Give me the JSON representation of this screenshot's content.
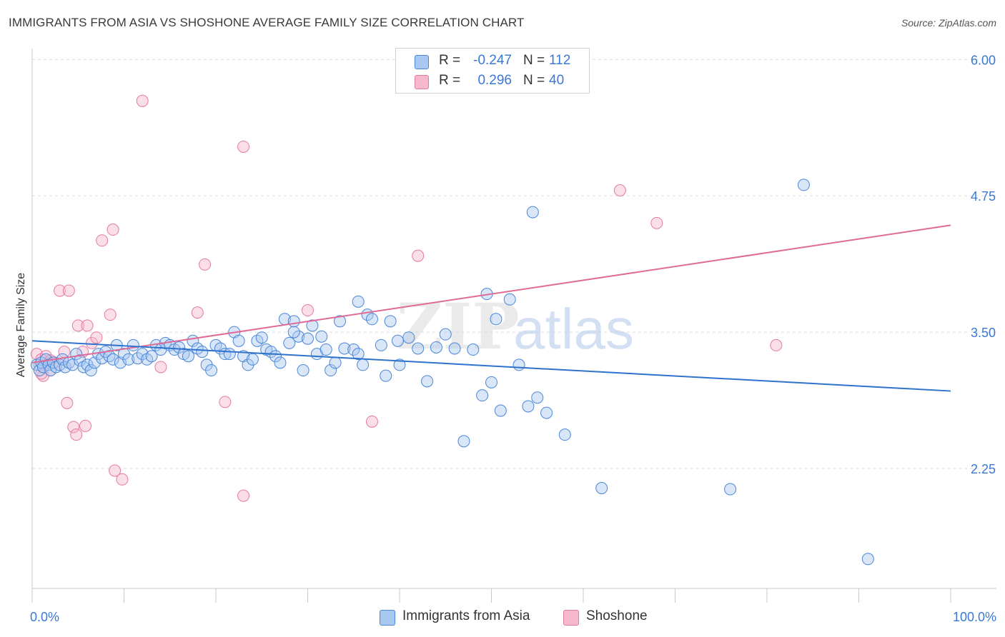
{
  "header": {
    "title": "IMMIGRANTS FROM ASIA VS SHOSHONE AVERAGE FAMILY SIZE CORRELATION CHART",
    "source": "Source: ZipAtlas.com"
  },
  "legend": {
    "rows": [
      {
        "r_label": "R =",
        "r_value": "-0.247",
        "n_label": "N =",
        "n_value": "112"
      },
      {
        "r_label": "R =",
        "r_value": "0.296",
        "n_label": "N =",
        "n_value": "40"
      }
    ]
  },
  "bottom_legend": {
    "items": [
      {
        "label": "Immigrants from Asia"
      },
      {
        "label": "Shoshone"
      }
    ]
  },
  "colors": {
    "blue_fill": "#a9c8f0",
    "blue_stroke": "#4a86d8",
    "blue_line": "#2e72cc",
    "pink_fill": "#f6b8cc",
    "pink_stroke": "#e47aa0",
    "pink_line": "#e06a96",
    "tick_text": "#3a78d4",
    "grid": "#dcdcdc"
  },
  "chart_data": {
    "type": "scatter",
    "title": "IMMIGRANTS FROM ASIA VS SHOSHONE AVERAGE FAMILY SIZE CORRELATION CHART",
    "xlabel": "",
    "ylabel": "Average Family Size",
    "xlim": [
      0,
      100
    ],
    "ylim": [
      1.15,
      6.1
    ],
    "x_tick_labels": [
      "0.0%",
      "100.0%"
    ],
    "y_ticks": [
      2.25,
      3.5,
      4.75,
      6.0
    ],
    "y_tick_labels": [
      "2.25",
      "3.50",
      "4.75",
      "6.00"
    ],
    "grid": "horizontal-dashed",
    "legend_position": "top-center",
    "series": [
      {
        "name": "Immigrants from Asia",
        "color": "#a9c8f0",
        "r": -0.247,
        "n": 112,
        "trend": {
          "x": [
            0,
            100
          ],
          "y": [
            3.42,
            2.96
          ]
        },
        "points": [
          [
            0.5,
            3.2
          ],
          [
            0.8,
            3.15
          ],
          [
            1,
            3.22
          ],
          [
            1.2,
            3.18
          ],
          [
            1.5,
            3.25
          ],
          [
            1.8,
            3.2
          ],
          [
            2,
            3.15
          ],
          [
            2.3,
            3.22
          ],
          [
            2.6,
            3.18
          ],
          [
            3,
            3.2
          ],
          [
            3.3,
            3.25
          ],
          [
            3.6,
            3.18
          ],
          [
            4,
            3.22
          ],
          [
            4.4,
            3.2
          ],
          [
            4.8,
            3.3
          ],
          [
            5.2,
            3.24
          ],
          [
            5.6,
            3.18
          ],
          [
            6,
            3.2
          ],
          [
            6.4,
            3.15
          ],
          [
            6.8,
            3.22
          ],
          [
            7.2,
            3.3
          ],
          [
            7.6,
            3.26
          ],
          [
            8,
            3.32
          ],
          [
            8.4,
            3.28
          ],
          [
            8.8,
            3.25
          ],
          [
            9.2,
            3.38
          ],
          [
            9.6,
            3.22
          ],
          [
            10,
            3.3
          ],
          [
            10.5,
            3.25
          ],
          [
            11,
            3.38
          ],
          [
            11.5,
            3.26
          ],
          [
            12,
            3.3
          ],
          [
            12.5,
            3.25
          ],
          [
            13,
            3.28
          ],
          [
            13.5,
            3.38
          ],
          [
            14,
            3.34
          ],
          [
            14.5,
            3.4
          ],
          [
            15,
            3.38
          ],
          [
            15.5,
            3.34
          ],
          [
            16,
            3.36
          ],
          [
            16.5,
            3.3
          ],
          [
            17,
            3.28
          ],
          [
            17.5,
            3.42
          ],
          [
            18,
            3.35
          ],
          [
            18.5,
            3.32
          ],
          [
            19,
            3.2
          ],
          [
            19.5,
            3.15
          ],
          [
            20,
            3.38
          ],
          [
            20.5,
            3.35
          ],
          [
            21,
            3.3
          ],
          [
            21.5,
            3.3
          ],
          [
            22,
            3.5
          ],
          [
            22.5,
            3.42
          ],
          [
            23,
            3.28
          ],
          [
            23.5,
            3.2
          ],
          [
            24,
            3.25
          ],
          [
            24.5,
            3.42
          ],
          [
            25,
            3.45
          ],
          [
            25.5,
            3.34
          ],
          [
            26,
            3.32
          ],
          [
            26.5,
            3.28
          ],
          [
            27,
            3.22
          ],
          [
            27.5,
            3.62
          ],
          [
            28,
            3.4
          ],
          [
            28.5,
            3.6
          ],
          [
            29,
            3.46
          ],
          [
            29.5,
            3.15
          ],
          [
            30,
            3.44
          ],
          [
            30.5,
            3.56
          ],
          [
            31,
            3.3
          ],
          [
            31.5,
            3.46
          ],
          [
            32,
            3.34
          ],
          [
            32.5,
            3.15
          ],
          [
            33,
            3.22
          ],
          [
            33.5,
            3.6
          ],
          [
            34,
            3.35
          ],
          [
            35,
            3.34
          ],
          [
            35.5,
            3.3
          ],
          [
            36,
            3.2
          ],
          [
            36.5,
            3.66
          ],
          [
            37,
            3.62
          ],
          [
            38,
            3.38
          ],
          [
            38.5,
            3.1
          ],
          [
            39,
            3.6
          ],
          [
            39.8,
            3.42
          ],
          [
            40,
            3.2
          ],
          [
            41,
            3.45
          ],
          [
            42,
            3.35
          ],
          [
            43,
            3.05
          ],
          [
            44,
            3.36
          ],
          [
            45,
            3.48
          ],
          [
            46,
            3.35
          ],
          [
            47,
            2.5
          ],
          [
            48,
            3.34
          ],
          [
            49,
            2.92
          ],
          [
            49.5,
            3.85
          ],
          [
            50,
            3.04
          ],
          [
            50.5,
            3.62
          ],
          [
            51,
            2.78
          ],
          [
            52,
            3.8
          ],
          [
            53,
            3.2
          ],
          [
            54,
            2.82
          ],
          [
            54.5,
            4.6
          ],
          [
            55,
            2.9
          ],
          [
            56,
            2.76
          ],
          [
            58,
            2.56
          ],
          [
            62,
            2.07
          ],
          [
            76,
            2.06
          ],
          [
            84,
            4.85
          ],
          [
            91,
            1.42
          ],
          [
            35.5,
            3.78
          ],
          [
            28.5,
            3.5
          ]
        ]
      },
      {
        "name": "Shoshone",
        "color": "#f6b8cc",
        "r": 0.296,
        "n": 40,
        "trend": {
          "x": [
            0,
            100
          ],
          "y": [
            3.22,
            4.48
          ]
        },
        "points": [
          [
            0.5,
            3.3
          ],
          [
            0.8,
            3.2
          ],
          [
            1,
            3.25
          ],
          [
            1.2,
            3.1
          ],
          [
            1.5,
            3.28
          ],
          [
            1.8,
            3.22
          ],
          [
            2,
            3.15
          ],
          [
            2.5,
            3.22
          ],
          [
            3,
            3.88
          ],
          [
            3.5,
            3.32
          ],
          [
            3.8,
            2.85
          ],
          [
            4,
            3.88
          ],
          [
            4.5,
            2.63
          ],
          [
            4.8,
            2.56
          ],
          [
            5,
            3.56
          ],
          [
            5.5,
            3.32
          ],
          [
            5.8,
            2.64
          ],
          [
            6,
            3.56
          ],
          [
            6.5,
            3.4
          ],
          [
            7,
            3.45
          ],
          [
            7.6,
            4.34
          ],
          [
            8.5,
            3.66
          ],
          [
            8.8,
            4.44
          ],
          [
            9,
            2.23
          ],
          [
            9.8,
            2.15
          ],
          [
            12,
            5.62
          ],
          [
            14,
            3.18
          ],
          [
            18,
            3.68
          ],
          [
            18.8,
            4.12
          ],
          [
            21,
            2.86
          ],
          [
            23,
            5.2
          ],
          [
            23,
            2.0
          ],
          [
            30,
            3.7
          ],
          [
            37,
            2.68
          ],
          [
            42,
            4.2
          ],
          [
            64,
            4.8
          ],
          [
            68,
            4.5
          ],
          [
            81,
            3.38
          ],
          [
            1,
            3.12
          ],
          [
            2,
            3.24
          ]
        ]
      }
    ]
  }
}
